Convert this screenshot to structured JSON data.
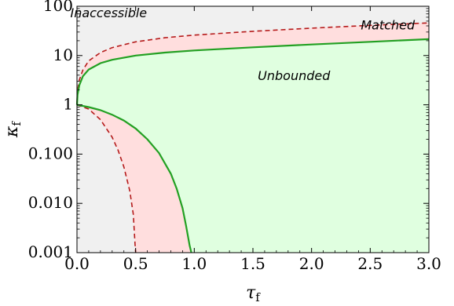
{
  "chart_data": {
    "type": "area",
    "xlabel": "τ",
    "xlabel_sub": "f",
    "ylabel": "κ",
    "ylabel_sub": "f",
    "xlim": [
      0,
      3
    ],
    "ylim": [
      0.001,
      100
    ],
    "yscale": "log",
    "x_ticks": [
      {
        "value": 0,
        "label": "0.0"
      },
      {
        "value": 0.5,
        "label": "0.5"
      },
      {
        "value": 1,
        "label": "1.0"
      },
      {
        "value": 1.5,
        "label": "1.5"
      },
      {
        "value": 2,
        "label": "2.0"
      },
      {
        "value": 2.5,
        "label": "2.5"
      },
      {
        "value": 3,
        "label": "3.0"
      }
    ],
    "y_ticks": [
      {
        "value": 0.001,
        "label": "0.001"
      },
      {
        "value": 0.01,
        "label": "0.010"
      },
      {
        "value": 0.1,
        "label": "0.100"
      },
      {
        "value": 1,
        "label": "1"
      },
      {
        "value": 10,
        "label": "10"
      },
      {
        "value": 100,
        "label": "100"
      }
    ],
    "regions": [
      {
        "label": "Inaccessible",
        "color": "#f0f0f0",
        "label_at": [
          0.27,
          60
        ]
      },
      {
        "label": "Matched",
        "color": "#ffdede",
        "label_at": [
          2.65,
          34
        ]
      },
      {
        "label": "Unbounded",
        "color": "#e0ffe0",
        "label_at": [
          1.85,
          3.2
        ]
      }
    ],
    "series": [
      {
        "style": "dashed",
        "color": "#b51a1a",
        "upper": [
          [
            0,
            1
          ],
          [
            0.005,
            1.9
          ],
          [
            0.02,
            3.2
          ],
          [
            0.05,
            5.1
          ],
          [
            0.1,
            7.8
          ],
          [
            0.2,
            11.5
          ],
          [
            0.3,
            14.5
          ],
          [
            0.5,
            19
          ],
          [
            0.75,
            23
          ],
          [
            1,
            26
          ],
          [
            1.5,
            31
          ],
          [
            2,
            36
          ],
          [
            2.5,
            41
          ],
          [
            3,
            46
          ]
        ],
        "lower": [
          [
            0,
            1
          ],
          [
            0.1,
            0.82
          ],
          [
            0.2,
            0.5
          ],
          [
            0.3,
            0.22
          ],
          [
            0.35,
            0.12
          ],
          [
            0.4,
            0.055
          ],
          [
            0.45,
            0.018
          ],
          [
            0.48,
            0.006
          ],
          [
            0.495,
            0.0015
          ],
          [
            0.5,
            0.001
          ]
        ]
      },
      {
        "style": "solid",
        "color": "#22a022",
        "upper": [
          [
            0,
            1
          ],
          [
            0.005,
            1.6
          ],
          [
            0.02,
            2.5
          ],
          [
            0.05,
            3.8
          ],
          [
            0.1,
            5.2
          ],
          [
            0.2,
            7
          ],
          [
            0.3,
            8.2
          ],
          [
            0.5,
            10
          ],
          [
            0.75,
            11.5
          ],
          [
            1,
            12.7
          ],
          [
            1.5,
            14.7
          ],
          [
            2,
            16.8
          ],
          [
            2.5,
            19
          ],
          [
            3,
            21.5
          ]
        ],
        "lower": [
          [
            0,
            1
          ],
          [
            0.1,
            0.9
          ],
          [
            0.2,
            0.78
          ],
          [
            0.3,
            0.63
          ],
          [
            0.4,
            0.48
          ],
          [
            0.5,
            0.33
          ],
          [
            0.6,
            0.2
          ],
          [
            0.7,
            0.105
          ],
          [
            0.8,
            0.04
          ],
          [
            0.85,
            0.02
          ],
          [
            0.9,
            0.008
          ],
          [
            0.93,
            0.0035
          ],
          [
            0.96,
            0.0014
          ],
          [
            0.975,
            0.001
          ]
        ]
      }
    ]
  }
}
